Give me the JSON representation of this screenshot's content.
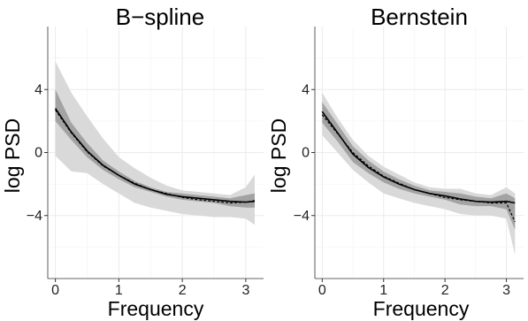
{
  "chart_data": [
    {
      "type": "line",
      "title": "B−spline",
      "xlabel": "Frequency",
      "ylabel": "log PSD",
      "xlim": [
        -0.12,
        3.28
      ],
      "ylim": [
        -8.0,
        8.0
      ],
      "xticks": [
        0,
        1,
        2,
        3
      ],
      "xtick_labels": [
        "0",
        "1",
        "2",
        "3"
      ],
      "yticks": [
        -4,
        0,
        4
      ],
      "ytick_labels": [
        "−4",
        "0",
        "4"
      ],
      "grid": true,
      "colors": {
        "outer_band": "#d9d9d9",
        "inner_band": "#a3a3a3",
        "estimate": "#000000",
        "truth": "#000000"
      },
      "x": [
        0,
        0.25,
        0.5,
        0.75,
        1.0,
        1.25,
        1.5,
        1.75,
        2.0,
        2.25,
        2.5,
        2.75,
        3.0,
        3.14
      ],
      "series": [
        {
          "role": "outer_band_upper",
          "values": [
            5.8,
            3.8,
            2.3,
            0.9,
            -0.3,
            -1.0,
            -1.6,
            -2.1,
            -2.4,
            -2.5,
            -2.6,
            -2.7,
            -2.2,
            -1.4
          ]
        },
        {
          "role": "outer_band_lower",
          "values": [
            -0.2,
            -1.2,
            -1.3,
            -2.0,
            -2.6,
            -3.2,
            -3.5,
            -3.7,
            -3.9,
            -4.0,
            -4.1,
            -4.1,
            -4.2,
            -4.6
          ]
        },
        {
          "role": "inner_band_upper",
          "values": [
            4.0,
            1.9,
            0.6,
            -0.5,
            -1.2,
            -1.8,
            -2.2,
            -2.5,
            -2.6,
            -2.7,
            -2.8,
            -2.9,
            -2.7,
            -2.6
          ]
        },
        {
          "role": "inner_band_lower",
          "values": [
            2.0,
            0.8,
            -0.3,
            -1.1,
            -1.7,
            -2.2,
            -2.5,
            -2.8,
            -3.0,
            -3.1,
            -3.2,
            -3.4,
            -3.5,
            -3.5
          ]
        },
        {
          "role": "estimate",
          "values": [
            2.8,
            1.3,
            0.1,
            -0.8,
            -1.45,
            -2.0,
            -2.35,
            -2.65,
            -2.8,
            -2.9,
            -3.0,
            -3.1,
            -3.15,
            -3.1
          ]
        },
        {
          "role": "truth",
          "values": [
            2.7,
            1.25,
            0.05,
            -0.85,
            -1.45,
            -1.95,
            -2.35,
            -2.6,
            -2.85,
            -3.0,
            -3.1,
            -3.2,
            -3.15,
            -3.05
          ]
        }
      ]
    },
    {
      "type": "line",
      "title": "Bernstein",
      "xlabel": "Frequency",
      "ylabel": "log PSD",
      "xlim": [
        -0.12,
        3.28
      ],
      "ylim": [
        -8.0,
        8.0
      ],
      "xticks": [
        0,
        1,
        2,
        3
      ],
      "xtick_labels": [
        "0",
        "1",
        "2",
        "3"
      ],
      "yticks": [
        -4,
        0,
        4
      ],
      "ytick_labels": [
        "−4",
        "0",
        "4"
      ],
      "grid": true,
      "colors": {
        "outer_band": "#d9d9d9",
        "inner_band": "#a3a3a3",
        "estimate": "#000000",
        "truth": "#000000"
      },
      "x": [
        0,
        0.25,
        0.5,
        0.75,
        1.0,
        1.25,
        1.5,
        1.75,
        2.0,
        2.25,
        2.5,
        2.75,
        3.0,
        3.14
      ],
      "series": [
        {
          "role": "outer_band_upper",
          "values": [
            3.8,
            2.2,
            0.8,
            -0.2,
            -0.9,
            -1.4,
            -1.9,
            -2.2,
            -2.3,
            -2.3,
            -2.6,
            -2.7,
            -2.2,
            -2.6
          ]
        },
        {
          "role": "outer_band_lower",
          "values": [
            1.1,
            0.0,
            -1.1,
            -1.9,
            -2.6,
            -2.9,
            -3.2,
            -3.4,
            -3.6,
            -3.9,
            -4.0,
            -4.0,
            -4.2,
            -6.5
          ]
        },
        {
          "role": "inner_band_upper",
          "values": [
            3.2,
            1.8,
            0.4,
            -0.5,
            -1.2,
            -1.7,
            -2.1,
            -2.4,
            -2.5,
            -2.6,
            -2.8,
            -2.9,
            -2.6,
            -2.9
          ]
        },
        {
          "role": "inner_band_lower",
          "values": [
            1.9,
            0.7,
            -0.6,
            -1.3,
            -1.9,
            -2.3,
            -2.6,
            -2.8,
            -3.0,
            -3.3,
            -3.4,
            -3.4,
            -3.6,
            -4.9
          ]
        },
        {
          "role": "estimate",
          "values": [
            2.6,
            1.25,
            -0.1,
            -0.95,
            -1.55,
            -2.0,
            -2.35,
            -2.6,
            -2.75,
            -2.95,
            -3.1,
            -3.15,
            -3.1,
            -3.2
          ]
        },
        {
          "role": "truth",
          "values": [
            2.4,
            1.2,
            0.0,
            -0.85,
            -1.5,
            -1.95,
            -2.35,
            -2.6,
            -2.85,
            -3.0,
            -3.1,
            -3.2,
            -3.2,
            -4.4
          ]
        }
      ]
    }
  ]
}
